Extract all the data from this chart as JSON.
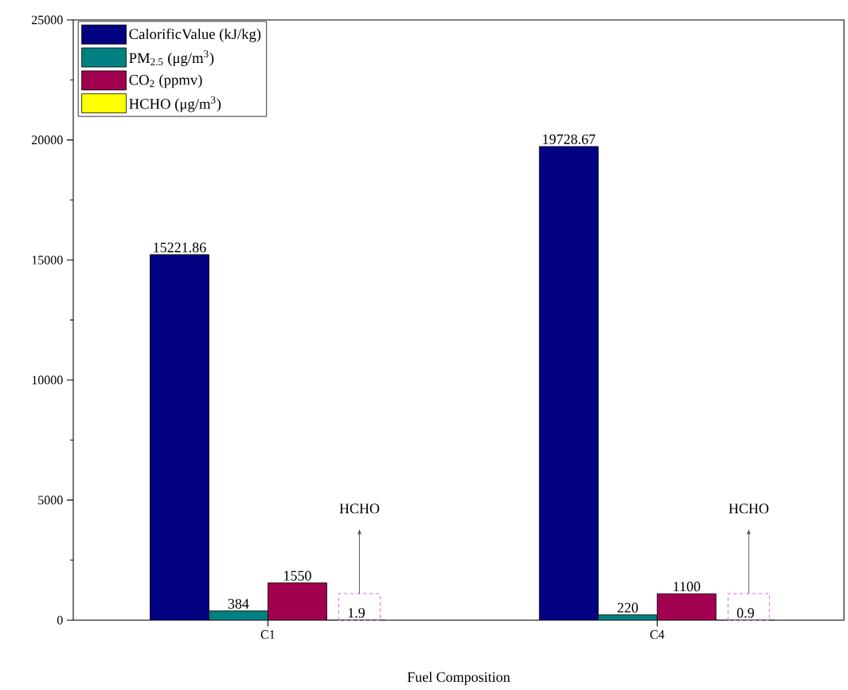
{
  "chart_data": {
    "type": "bar",
    "xlabel": "Fuel Composition",
    "categories": [
      "C1",
      "C4"
    ],
    "series": [
      {
        "name": "CalorificValue (kJ/kg)",
        "color": "#000080",
        "values": [
          15221.86,
          19728.67
        ]
      },
      {
        "name": "PM$_{2.5}$ (μg/m$^{3}$)",
        "color": "#008080",
        "values": [
          384,
          220
        ]
      },
      {
        "name": "CO$_{2}$  (ppmv)",
        "color": "#a0004f",
        "values": [
          1550,
          1100
        ]
      },
      {
        "name": "HCHO (μg/m$^{3}$)",
        "color": "#ffff00",
        "values": [
          1.9,
          0.9
        ]
      }
    ],
    "ylim": [
      0,
      25000
    ],
    "yticks": [
      0,
      5000,
      10000,
      15000,
      20000,
      25000
    ],
    "data_labels": true,
    "legend": "top left",
    "annotations": [
      "HCHO",
      "HCHO"
    ]
  }
}
